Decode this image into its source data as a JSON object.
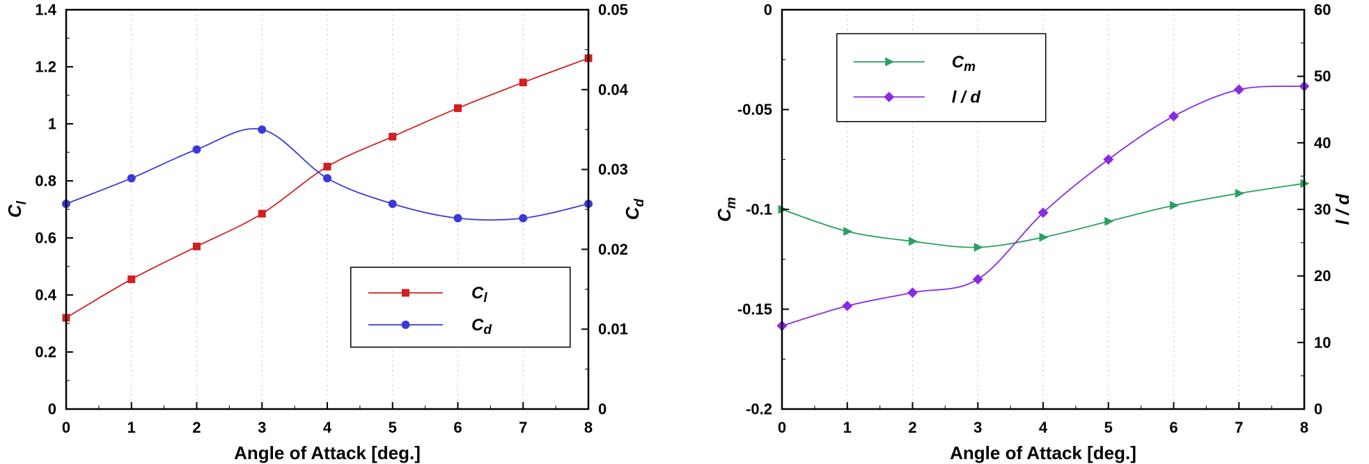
{
  "figure": {
    "background": "#ffffff"
  },
  "chart_data": [
    {
      "id": "cl-cd",
      "type": "line",
      "title": "",
      "xlabel": "Angle of Attack [deg.]",
      "xlim": [
        0,
        8
      ],
      "x_ticks": [
        0,
        1,
        2,
        3,
        4,
        5,
        6,
        7,
        8
      ],
      "x_tick_labels": [
        "0",
        "1",
        "2",
        "3",
        "4",
        "5",
        "6",
        "7",
        "8"
      ],
      "grid": "vertical-dashed",
      "axes": {
        "left": {
          "label_base": "C",
          "label_sub": "l",
          "lim": [
            0,
            1.4
          ],
          "ticks": [
            0,
            0.2,
            0.4,
            0.6,
            0.8,
            1.0,
            1.2,
            1.4
          ],
          "tick_labels": [
            "0",
            "0.2",
            "0.4",
            "0.6",
            "0.8",
            "1",
            "1.2",
            "1.4"
          ]
        },
        "right": {
          "label_base": "C",
          "label_sub": "d",
          "lim": [
            0,
            0.05
          ],
          "ticks": [
            0,
            0.01,
            0.02,
            0.03,
            0.04,
            0.05
          ],
          "tick_labels": [
            "0",
            "0.01",
            "0.02",
            "0.03",
            "0.04",
            "0.05"
          ]
        }
      },
      "x": [
        0,
        1,
        2,
        3,
        4,
        5,
        6,
        7,
        8
      ],
      "series": [
        {
          "name": "Cl",
          "axis": "left",
          "color": "#d21f1f",
          "marker": "square",
          "label_base": "C",
          "label_sub": "l",
          "values": [
            0.32,
            0.455,
            0.57,
            0.685,
            0.85,
            0.955,
            1.055,
            1.145,
            1.23
          ]
        },
        {
          "name": "Cd",
          "axis": "right",
          "color": "#3a3ad8",
          "marker": "circle",
          "label_base": "C",
          "label_sub": "d",
          "values": [
            0.0257,
            0.0289,
            0.0325,
            0.035,
            0.0289,
            0.0257,
            0.0239,
            0.0239,
            0.0257
          ]
        }
      ],
      "legend": {
        "x": 0.545,
        "y": 0.645,
        "w": 0.42,
        "h": 0.2,
        "position": "lower-right"
      }
    },
    {
      "id": "cm-ld",
      "type": "line",
      "title": "",
      "xlabel": "Angle of Attack [deg.]",
      "xlim": [
        0,
        8
      ],
      "x_ticks": [
        0,
        1,
        2,
        3,
        4,
        5,
        6,
        7,
        8
      ],
      "x_tick_labels": [
        "0",
        "1",
        "2",
        "3",
        "4",
        "5",
        "6",
        "7",
        "8"
      ],
      "grid": "vertical-dashed",
      "axes": {
        "left": {
          "label_base": "C",
          "label_sub": "m",
          "lim": [
            -0.2,
            0
          ],
          "ticks": [
            -0.2,
            -0.15,
            -0.1,
            -0.05,
            0
          ],
          "tick_labels": [
            "-0.2",
            "-0.15",
            "-0.1",
            "-0.05",
            "0"
          ]
        },
        "right": {
          "label_base": "l / d",
          "label_sub": "",
          "lim": [
            0,
            60
          ],
          "ticks": [
            0,
            10,
            20,
            30,
            40,
            50,
            60
          ],
          "tick_labels": [
            "0",
            "10",
            "20",
            "30",
            "40",
            "50",
            "60"
          ]
        }
      },
      "x": [
        0,
        1,
        2,
        3,
        4,
        5,
        6,
        7,
        8
      ],
      "series": [
        {
          "name": "Cm",
          "axis": "left",
          "color": "#2aa05f",
          "marker": "triangle-right",
          "label_base": "C",
          "label_sub": "m",
          "values": [
            -0.1,
            -0.111,
            -0.116,
            -0.119,
            -0.114,
            -0.106,
            -0.098,
            -0.092,
            -0.087
          ]
        },
        {
          "name": "ld",
          "axis": "right",
          "color": "#8a2be2",
          "marker": "diamond",
          "label_base": "l / d",
          "label_sub": "",
          "values": [
            12.5,
            15.5,
            17.5,
            19.5,
            29.5,
            37.5,
            44,
            48,
            48.5
          ]
        }
      ],
      "legend": {
        "x": 0.105,
        "y": 0.06,
        "w": 0.4,
        "h": 0.22,
        "position": "upper-left"
      }
    }
  ]
}
